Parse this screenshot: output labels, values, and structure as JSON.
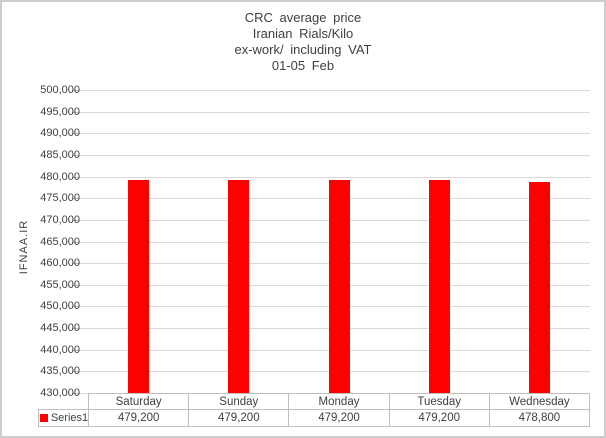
{
  "title": {
    "lines": [
      "CRC average price",
      "Iranian Rials/Kilo",
      "ex-work/ including VAT",
      "01-05 Feb"
    ]
  },
  "y_axis": {
    "label": "IFNAA.IR",
    "tick_labels": [
      "500,000",
      "495,000",
      "490,000",
      "485,000",
      "480,000",
      "475,000",
      "470,000",
      "465,000",
      "460,000",
      "455,000",
      "450,000",
      "445,000",
      "440,000",
      "435,000",
      "430,000"
    ]
  },
  "table": {
    "headers": [
      "Saturday",
      "Sunday",
      "Monday",
      "Tuesday",
      "Wednesday"
    ],
    "values": [
      "479,200",
      "479,200",
      "479,200",
      "479,200",
      "478,800"
    ],
    "legend_label": "Series1"
  },
  "chart_data": {
    "type": "bar",
    "categories": [
      "Saturday",
      "Sunday",
      "Monday",
      "Tuesday",
      "Wednesday"
    ],
    "series": [
      {
        "name": "Series1",
        "values": [
          479200,
          479200,
          479200,
          479200,
          478800
        ]
      }
    ],
    "title": "CRC average price Iranian Rials/Kilo ex-work/ including VAT 01-05 Feb",
    "xlabel": "",
    "ylabel": "IFNAA.IR",
    "ylim": [
      430000,
      500000
    ],
    "ytick_step": 5000,
    "grid": true,
    "legend_position": "bottom-left data table",
    "bar_color": "#FF0000"
  },
  "colors": {
    "bar": "#FF0000",
    "gridline": "#D9D9D9",
    "tick": "#BFBFBF",
    "table_border": "#BFBFBF",
    "text": "#404040",
    "outer_border": "#CDCDCD",
    "background": "#FFFFFF"
  }
}
